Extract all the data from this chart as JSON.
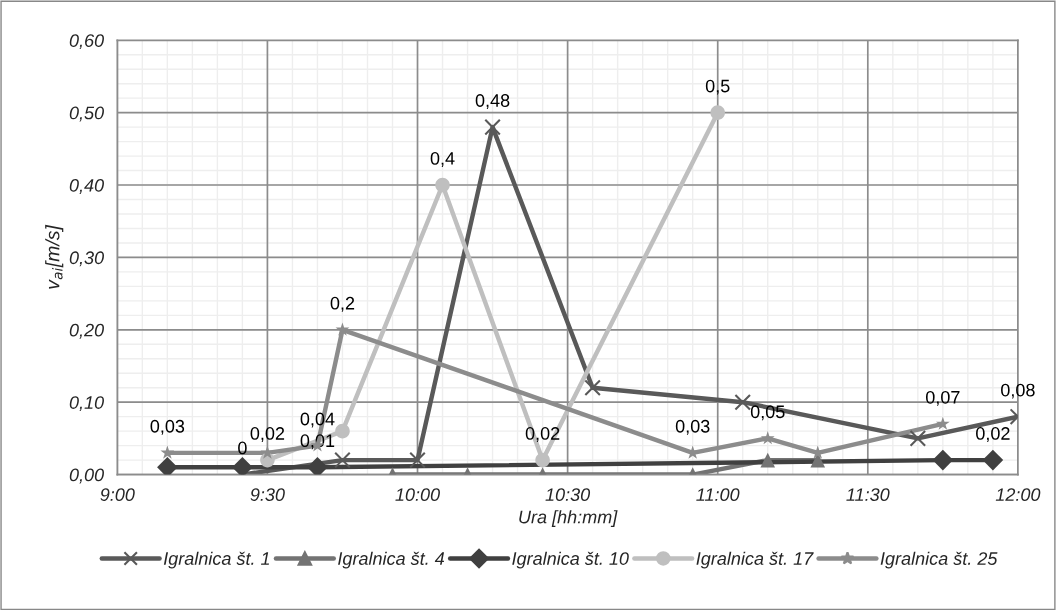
{
  "chart_data": {
    "type": "line",
    "xlabel": "Ura [hh:mm]",
    "ylabel": "v$_{ai}$[m/s]",
    "xlim": [
      9,
      12
    ],
    "ylim": [
      0,
      0.6
    ],
    "xticks": [
      {
        "value": 9,
        "label": "9:00"
      },
      {
        "value": 9.5,
        "label": "9:30"
      },
      {
        "value": 10,
        "label": "10:00"
      },
      {
        "value": 10.5,
        "label": "10:30"
      },
      {
        "value": 11,
        "label": "11:00"
      },
      {
        "value": 11.5,
        "label": "11:30"
      },
      {
        "value": 12,
        "label": "12:00"
      }
    ],
    "yticks": [
      {
        "value": 0,
        "label": "0,00"
      },
      {
        "value": 0.1,
        "label": "0,10"
      },
      {
        "value": 0.2,
        "label": "0,20"
      },
      {
        "value": 0.3,
        "label": "0,30"
      },
      {
        "value": 0.4,
        "label": "0,40"
      },
      {
        "value": 0.5,
        "label": "0,50"
      },
      {
        "value": 0.6,
        "label": "0,60"
      }
    ],
    "grid": true,
    "legend": "bottom",
    "line_style": "solid",
    "series": [
      {
        "name": "Igralnica št. 1",
        "color": "#595959",
        "marker": "cross",
        "x": [
          9.4167,
          9.75,
          10,
          10.25,
          10.5833,
          11.0833,
          11.6667,
          12
        ],
        "values": [
          0,
          0.02,
          0.02,
          0.48,
          0.12,
          0.1,
          0.05,
          0.08
        ],
        "value_labels": [
          "0",
          null,
          null,
          "0,48",
          null,
          null,
          null,
          "0,08"
        ]
      },
      {
        "name": "Igralnica št. 4",
        "color": "#737373",
        "marker": "triangle",
        "x": [
          9.9167,
          10.1667,
          10.4167,
          10.9167,
          11.1667,
          11.3333
        ],
        "values": [
          0,
          0,
          0,
          0,
          0.02,
          0.02
        ],
        "value_labels": [
          null,
          null,
          null,
          null,
          null,
          null
        ]
      },
      {
        "name": "Igralnica št. 10",
        "color": "#404040",
        "marker": "diamond",
        "x": [
          9.1667,
          9.4167,
          9.6667,
          11.75,
          11.9167
        ],
        "values": [
          0.01,
          0.01,
          0.01,
          0.02,
          0.02
        ],
        "value_labels": [
          null,
          null,
          "0,01",
          null,
          "0,02"
        ]
      },
      {
        "name": "Igralnica št. 17",
        "color": "#bfbfbf",
        "marker": "circle",
        "x": [
          9.5,
          9.75,
          10.0833,
          10.4167,
          11
        ],
        "values": [
          0.02,
          0.06,
          0.4,
          0.02,
          0.5
        ],
        "value_labels": [
          "0,02",
          null,
          "0,4",
          "0,02",
          "0,5"
        ]
      },
      {
        "name": "Igralnica št. 25",
        "color": "#8c8c8c",
        "marker": "star",
        "x": [
          9.1667,
          9.5,
          9.6667,
          9.75,
          10.9167,
          11.1667,
          11.3333,
          11.75
        ],
        "values": [
          0.03,
          0.03,
          0.04,
          0.2,
          0.03,
          0.05,
          0.03,
          0.07
        ],
        "value_labels": [
          "0,03",
          null,
          "0,04",
          "0,2",
          "0,03",
          "0,05",
          null,
          "0,07"
        ]
      }
    ]
  }
}
